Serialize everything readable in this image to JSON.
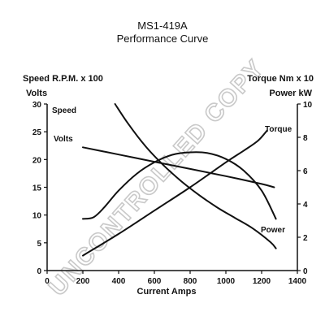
{
  "chart_data": {
    "type": "line",
    "title": "MS1-419A",
    "subtitle": "Performance Curve",
    "xlabel": "Current Amps",
    "left_axis_labels": [
      "Speed R.P.M. x 100",
      "Volts"
    ],
    "right_axis_labels": [
      "Torque Nm x 10",
      "Power kW"
    ],
    "xlim": [
      0,
      1400
    ],
    "ylim_left": [
      0,
      30
    ],
    "ylim_right": [
      0,
      10
    ],
    "x_ticks": [
      "0",
      "200",
      "400",
      "600",
      "800",
      "1000",
      "1200",
      "1400"
    ],
    "y_left_ticks": [
      "0",
      "5",
      "10",
      "15",
      "20",
      "25",
      "30"
    ],
    "y_right_ticks": [
      "0",
      "2",
      "4",
      "6",
      "8",
      "10"
    ],
    "watermark": "UNCONTROLLED COPY",
    "series": [
      {
        "name": "Speed",
        "axis": "left",
        "x": [
          380,
          450,
          550,
          650,
          750,
          850,
          950,
          1050,
          1150,
          1250,
          1280
        ],
        "y": [
          30,
          26.6,
          22.4,
          19.0,
          16.1,
          13.6,
          11.4,
          9.5,
          7.6,
          5.1,
          4.0
        ]
      },
      {
        "name": "Volts",
        "axis": "left",
        "x": [
          200,
          400,
          600,
          800,
          1000,
          1200,
          1270
        ],
        "y": [
          22.2,
          20.9,
          19.6,
          18.3,
          17.0,
          15.6,
          15.0
        ]
      },
      {
        "name": "Torque",
        "axis": "right",
        "x": [
          200,
          400,
          600,
          800,
          1000,
          1100,
          1180,
          1230
        ],
        "y": [
          0.9,
          2.2,
          3.6,
          5.0,
          6.5,
          7.2,
          7.8,
          8.4
        ]
      },
      {
        "name": "Power",
        "axis": "right",
        "x": [
          200,
          260,
          320,
          400,
          500,
          600,
          700,
          800,
          900,
          1000,
          1100,
          1200,
          1280
        ],
        "y": [
          3.1,
          3.2,
          3.8,
          4.8,
          5.8,
          6.5,
          6.95,
          7.1,
          7.05,
          6.7,
          6.0,
          4.8,
          3.1
        ]
      }
    ]
  }
}
